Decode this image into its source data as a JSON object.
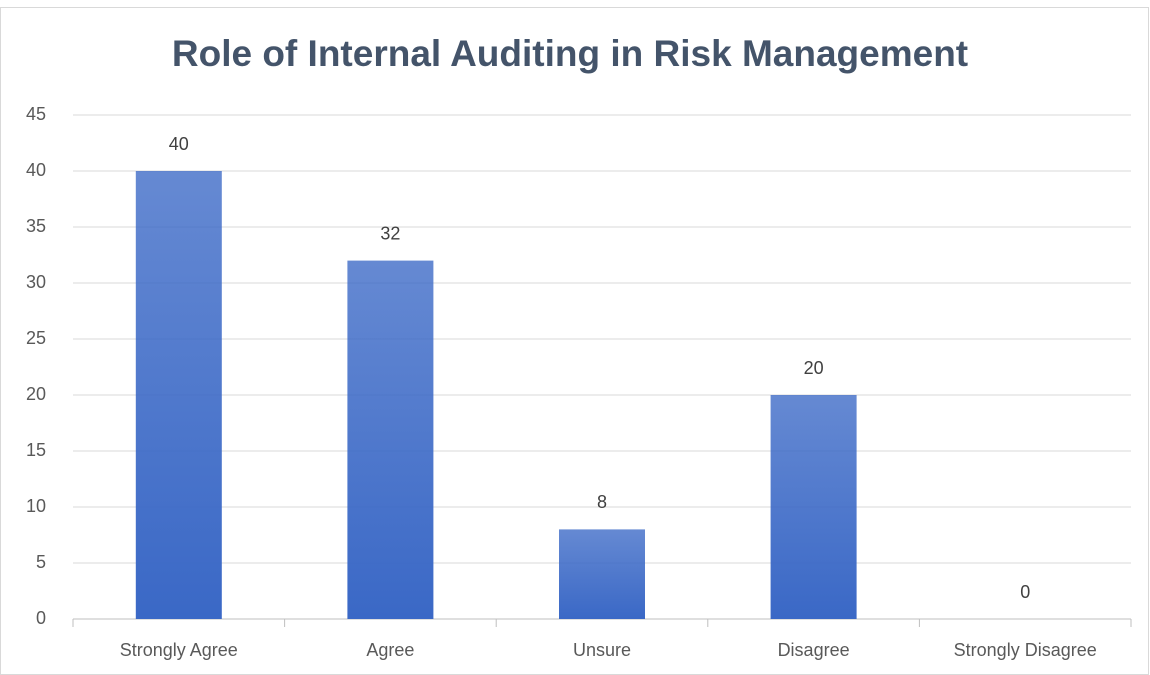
{
  "chart_data": {
    "type": "bar",
    "title": "Role of Internal Auditing in Risk Management",
    "categories": [
      "Strongly Agree",
      "Agree",
      "Unsure",
      "Disagree",
      "Strongly Disagree"
    ],
    "values": [
      40,
      32,
      8,
      20,
      0
    ],
    "color": "#3a68c6",
    "ylim": [
      0,
      45
    ],
    "yticks": [
      0,
      5,
      10,
      15,
      20,
      25,
      30,
      35,
      40,
      45
    ],
    "grid": true
  }
}
